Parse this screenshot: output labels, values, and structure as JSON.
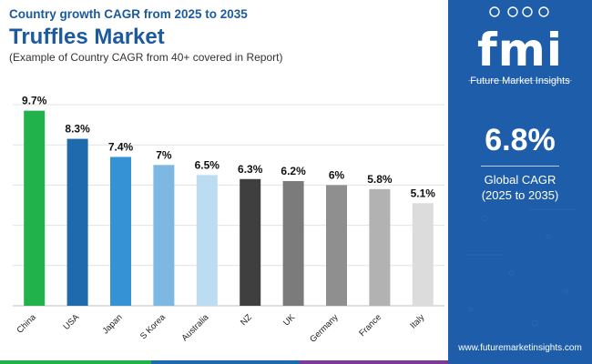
{
  "header": {
    "subtitle": "Country growth CAGR from 2025 to 2035",
    "title": "Truffles Market",
    "caption": "(Example of Country CAGR from 40+ covered in Report)"
  },
  "chart_data": {
    "type": "bar",
    "title": "Truffles Market",
    "subtitle": "Country growth CAGR from 2025 to 2035",
    "categories": [
      "China",
      "USA",
      "Japan",
      "S Korea",
      "Australia",
      "NZ",
      "UK",
      "Germany",
      "France",
      "Italy"
    ],
    "values": [
      9.7,
      8.3,
      7.4,
      7.0,
      6.5,
      6.3,
      6.2,
      6.0,
      5.8,
      5.1
    ],
    "value_labels": [
      "9.7%",
      "8.3%",
      "7.4%",
      "7%",
      "6.5%",
      "6.3%",
      "6.2%",
      "6%",
      "5.8%",
      "5.1%"
    ],
    "bar_colors": [
      "#21b24b",
      "#1f6aad",
      "#3592d4",
      "#7db8e3",
      "#bcdcf1",
      "#3f3f3f",
      "#7b7b7b",
      "#8f8f8f",
      "#b2b2b2",
      "#dcdcdc"
    ],
    "ylim": [
      0,
      10
    ],
    "grid": true,
    "xlabel": "",
    "ylabel": ""
  },
  "sidebar": {
    "logo_text": "fmi",
    "brand_name": "Future Market Insights",
    "kpi_value": "6.8%",
    "kpi_label_line1": "Global CAGR",
    "kpi_label_line2": "(2025 to 2035)",
    "website": "www.futuremarketinsights.com"
  },
  "colors": {
    "brand_blue": "#1e5da9",
    "title_blue": "#1b5a9e",
    "bottom_bar": [
      "#21b24b",
      "#1f6aad",
      "#7c3a96"
    ]
  }
}
